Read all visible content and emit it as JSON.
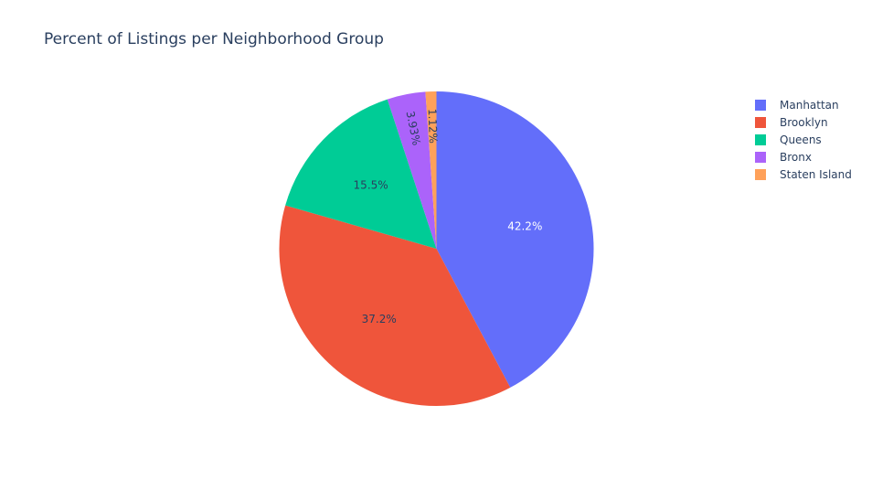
{
  "chart_data": {
    "type": "pie",
    "title": "Percent of Listings per Neighborhood Group",
    "legend_position": "top-right",
    "series": [
      {
        "categories": [
          "Manhattan",
          "Brooklyn",
          "Queens",
          "Bronx",
          "Staten Island"
        ],
        "values": [
          42.2,
          37.2,
          15.5,
          3.93,
          1.12
        ],
        "labels": [
          "42.2%",
          "37.2%",
          "15.5%",
          "3.93%",
          "1.12%"
        ],
        "colors": [
          "#636efa",
          "#ef553b",
          "#00cc96",
          "#ab63fa",
          "#ffa15a"
        ]
      }
    ],
    "sort": "descending",
    "direction": "clockwise",
    "start": "top"
  }
}
